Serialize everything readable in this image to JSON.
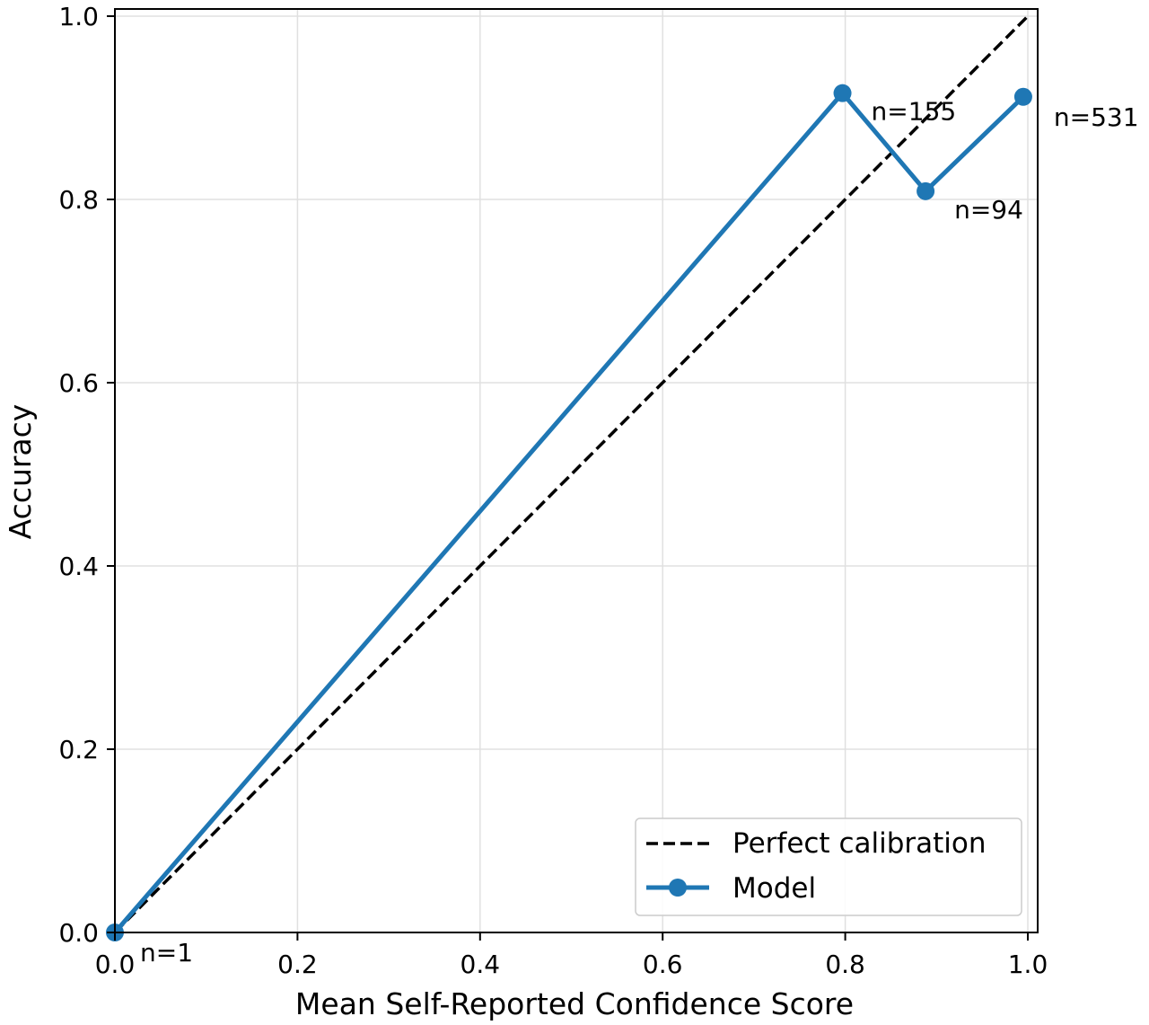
{
  "chart_data": {
    "type": "line",
    "title": "",
    "xlabel": "Mean Self-Reported Confidence Score",
    "ylabel": "Accuracy",
    "xlim": [
      0.0,
      1.0
    ],
    "ylim": [
      0.0,
      1.0
    ],
    "xticks": [
      "0.0",
      "0.2",
      "0.4",
      "0.6",
      "0.8",
      "1.0"
    ],
    "yticks": [
      "0.0",
      "0.2",
      "0.4",
      "0.6",
      "0.8",
      "1.0"
    ],
    "grid": true,
    "legend_position": "lower-right",
    "series": [
      {
        "name": "Perfect calibration",
        "style": "dashed",
        "color": "#000000",
        "x": [
          0.0,
          1.0
        ],
        "y": [
          0.0,
          1.0
        ]
      },
      {
        "name": "Model",
        "style": "solid-markers",
        "color": "#1f77b4",
        "x": [
          0.0,
          0.797,
          0.888,
          0.995
        ],
        "y": [
          0.0,
          0.916,
          0.809,
          0.912
        ],
        "annotations": [
          "n=1",
          "n=155",
          "n=94",
          "n=531"
        ]
      }
    ]
  }
}
